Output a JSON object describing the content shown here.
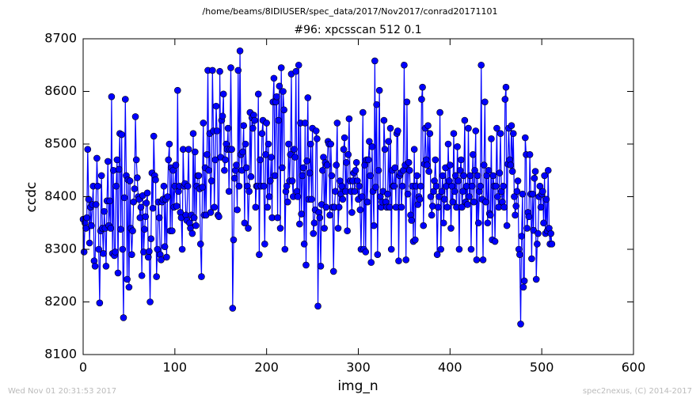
{
  "chart_data": {
    "type": "line",
    "suptitle": "/home/beams/8IDIUSER/spec_data/2017/Nov2017/conrad20171101",
    "title": "#96: xpcsscan 512 0.1",
    "xlabel": "img_n",
    "ylabel": "ccdc",
    "footer_left": "Wed Nov 01 20:31:53 2017",
    "footer_right": "spec2nexus, (C) 2014-2017",
    "color": "#0000ff",
    "marker": "o",
    "xlim": [
      0,
      600
    ],
    "xticks": [
      0,
      100,
      200,
      300,
      400,
      500,
      600
    ],
    "ylim": [
      8100,
      8700
    ],
    "yticks": [
      8100,
      8200,
      8300,
      8400,
      8500,
      8600,
      8700
    ],
    "x": [
      0,
      1,
      2,
      3,
      4,
      5,
      6,
      7,
      8,
      9,
      10,
      11,
      12,
      13,
      14,
      15,
      16,
      17,
      18,
      19,
      20,
      21,
      22,
      23,
      24,
      25,
      26,
      27,
      28,
      29,
      30,
      31,
      32,
      33,
      34,
      35,
      36,
      37,
      38,
      39,
      40,
      41,
      42,
      43,
      44,
      45,
      46,
      47,
      48,
      49,
      50,
      51,
      52,
      53,
      54,
      55,
      56,
      57,
      58,
      59,
      60,
      61,
      62,
      63,
      64,
      65,
      66,
      67,
      68,
      69,
      70,
      71,
      72,
      73,
      74,
      75,
      76,
      77,
      78,
      79,
      80,
      81,
      82,
      83,
      84,
      85,
      86,
      87,
      88,
      89,
      90,
      91,
      92,
      93,
      94,
      95,
      96,
      97,
      98,
      99,
      100,
      101,
      102,
      103,
      104,
      105,
      106,
      107,
      108,
      109,
      110,
      111,
      112,
      113,
      114,
      115,
      116,
      117,
      118,
      119,
      120,
      121,
      122,
      123,
      124,
      125,
      126,
      127,
      128,
      129,
      130,
      131,
      132,
      133,
      134,
      135,
      136,
      137,
      138,
      139,
      140,
      141,
      142,
      143,
      144,
      145,
      146,
      147,
      148,
      149,
      150,
      151,
      152,
      153,
      154,
      155,
      156,
      157,
      158,
      159,
      160,
      161,
      162,
      163,
      164,
      165,
      166,
      167,
      168,
      169,
      170,
      171,
      172,
      173,
      174,
      175,
      176,
      177,
      178,
      179,
      180,
      181,
      182,
      183,
      184,
      185,
      186,
      187,
      188,
      189,
      190,
      191,
      192,
      193,
      194,
      195,
      196,
      197,
      198,
      199,
      200,
      201,
      202,
      203,
      204,
      205,
      206,
      207,
      208,
      209,
      210,
      211,
      212,
      213,
      214,
      215,
      216,
      217,
      218,
      219,
      220,
      221,
      222,
      223,
      224,
      225,
      226,
      227,
      228,
      229,
      230,
      231,
      232,
      233,
      234,
      235,
      236,
      237,
      238,
      239,
      240,
      241,
      242,
      243,
      244,
      245,
      246,
      247,
      248,
      249,
      250,
      251,
      252,
      253,
      254,
      255,
      256,
      257,
      258,
      259,
      260,
      261,
      262,
      263,
      264,
      265,
      266,
      267,
      268,
      269,
      270,
      271,
      272,
      273,
      274,
      275,
      276,
      277,
      278,
      279,
      280,
      281,
      282,
      283,
      284,
      285,
      286,
      287,
      288,
      289,
      290,
      291,
      292,
      293,
      294,
      295,
      296,
      297,
      298,
      299,
      300,
      301,
      302,
      303,
      304,
      305,
      306,
      307,
      308,
      309,
      310,
      311,
      312,
      313,
      314,
      315,
      316,
      317,
      318,
      319,
      320,
      321,
      322,
      323,
      324,
      325,
      326,
      327,
      328,
      329,
      330,
      331,
      332,
      333,
      334,
      335,
      336,
      337,
      338,
      339,
      340,
      341,
      342,
      343,
      344,
      345,
      346,
      347,
      348,
      349,
      350,
      351,
      352,
      353,
      354,
      355,
      356,
      357,
      358,
      359,
      360,
      361,
      362,
      363,
      364,
      365,
      366,
      367,
      368,
      369,
      370,
      371,
      372,
      373,
      374,
      375,
      376,
      377,
      378,
      379,
      380,
      381,
      382,
      383,
      384,
      385,
      386,
      387,
      388,
      389,
      390,
      391,
      392,
      393,
      394,
      395,
      396,
      397,
      398,
      399,
      400,
      401,
      402,
      403,
      404,
      405,
      406,
      407,
      408,
      409,
      410,
      411,
      412,
      413,
      414,
      415,
      416,
      417,
      418,
      419,
      420,
      421,
      422,
      423,
      424,
      425,
      426,
      427,
      428,
      429,
      430,
      431,
      432,
      433,
      434,
      435,
      436,
      437,
      438,
      439,
      440,
      441,
      442,
      443,
      444,
      445,
      446,
      447,
      448,
      449,
      450,
      451,
      452,
      453,
      454,
      455,
      456,
      457,
      458,
      459,
      460,
      461,
      462,
      463,
      464,
      465,
      466,
      467,
      468,
      469,
      470,
      471,
      472,
      473,
      474,
      475,
      476,
      477,
      478,
      479,
      480,
      481,
      482,
      483,
      484,
      485,
      486,
      487,
      488,
      489,
      490,
      491,
      492,
      493,
      494,
      495,
      496,
      497,
      498,
      499,
      500,
      501,
      502,
      503,
      504,
      505,
      506,
      507,
      508,
      509,
      510,
      511
    ],
    "values": [
      8357,
      8295,
      8350,
      8340,
      8360,
      8490,
      8395,
      8312,
      8380,
      8345,
      8385,
      8420,
      8278,
      8268,
      8385,
      8473,
      8420,
      8300,
      8198,
      8335,
      8440,
      8340,
      8292,
      8372,
      8340,
      8268,
      8392,
      8467,
      8345,
      8392,
      8340,
      8590,
      8292,
      8450,
      8288,
      8295,
      8420,
      8470,
      8255,
      8452,
      8520,
      8338,
      8518,
      8300,
      8170,
      8398,
      8585,
      8440,
      8243,
      8432,
      8228,
      8430,
      8340,
      8290,
      8335,
      8390,
      8415,
      8552,
      8470,
      8436,
      8400,
      8395,
      8360,
      8380,
      8250,
      8402,
      8295,
      8338,
      8362,
      8388,
      8407,
      8285,
      8296,
      8200,
      8320,
      8445,
      8378,
      8515,
      8440,
      8432,
      8248,
      8300,
      8390,
      8360,
      8290,
      8280,
      8390,
      8395,
      8420,
      8305,
      8395,
      8285,
      8400,
      8470,
      8500,
      8335,
      8455,
      8335,
      8450,
      8380,
      8420,
      8460,
      8382,
      8602,
      8410,
      8420,
      8370,
      8360,
      8300,
      8490,
      8420,
      8425,
      8365,
      8355,
      8420,
      8490,
      8350,
      8340,
      8365,
      8330,
      8520,
      8360,
      8485,
      8345,
      8420,
      8440,
      8440,
      8415,
      8310,
      8248,
      8418,
      8540,
      8365,
      8455,
      8365,
      8480,
      8640,
      8450,
      8520,
      8370,
      8430,
      8640,
      8525,
      8380,
      8470,
      8572,
      8525,
      8365,
      8362,
      8638,
      8475,
      8545,
      8553,
      8595,
      8450,
      8470,
      8500,
      8490,
      8530,
      8410,
      8490,
      8645,
      8490,
      8188,
      8318,
      8435,
      8450,
      8460,
      8375,
      8640,
      8420,
      8677,
      8480,
      8450,
      8485,
      8535,
      8350,
      8500,
      8455,
      8420,
      8340,
      8410,
      8560,
      8438,
      8550,
      8530,
      8555,
      8545,
      8380,
      8420,
      8420,
      8595,
      8290,
      8470,
      8420,
      8520,
      8545,
      8420,
      8310,
      8480,
      8540,
      8380,
      8500,
      8400,
      8430,
      8475,
      8360,
      8580,
      8625,
      8440,
      8580,
      8590,
      8360,
      8545,
      8610,
      8340,
      8645,
      8455,
      8600,
      8565,
      8300,
      8410,
      8420,
      8390,
      8500,
      8430,
      8480,
      8633,
      8430,
      8400,
      8490,
      8475,
      8638,
      8410,
      8400,
      8650,
      8348,
      8540,
      8367,
      8440,
      8455,
      8310,
      8540,
      8270,
      8468,
      8588,
      8395,
      8445,
      8500,
      8395,
      8530,
      8330,
      8350,
      8375,
      8525,
      8510,
      8192,
      8370,
      8360,
      8268,
      8385,
      8450,
      8475,
      8340,
      8465,
      8380,
      8460,
      8505,
      8500,
      8365,
      8500,
      8440,
      8380,
      8258,
      8380,
      8410,
      8460,
      8540,
      8340,
      8380,
      8430,
      8405,
      8420,
      8395,
      8490,
      8512,
      8410,
      8465,
      8335,
      8480,
      8548,
      8430,
      8410,
      8370,
      8430,
      8445,
      8410,
      8450,
      8465,
      8430,
      8395,
      8420,
      8375,
      8300,
      8400,
      8560,
      8300,
      8460,
      8295,
      8470,
      8390,
      8470,
      8505,
      8440,
      8275,
      8495,
      8410,
      8345,
      8658,
      8418,
      8575,
      8290,
      8450,
      8602,
      8400,
      8380,
      8390,
      8410,
      8545,
      8490,
      8390,
      8380,
      8405,
      8505,
      8380,
      8530,
      8300,
      8450,
      8420,
      8420,
      8455,
      8380,
      8520,
      8525,
      8278,
      8440,
      8445,
      8380,
      8420,
      8450,
      8650,
      8460,
      8280,
      8580,
      8405,
      8465,
      8450,
      8365,
      8355,
      8420,
      8315,
      8490,
      8318,
      8420,
      8440,
      8385,
      8400,
      8395,
      8420,
      8585,
      8608,
      8345,
      8462,
      8530,
      8470,
      8460,
      8535,
      8448,
      8520,
      8400,
      8365,
      8382,
      8410,
      8430,
      8470,
      8420,
      8290,
      8380,
      8400,
      8560,
      8300,
      8410,
      8440,
      8350,
      8395,
      8455,
      8420,
      8380,
      8500,
      8430,
      8460,
      8340,
      8420,
      8390,
      8520,
      8410,
      8440,
      8380,
      8495,
      8430,
      8300,
      8450,
      8470,
      8380,
      8410,
      8440,
      8545,
      8390,
      8420,
      8385,
      8530,
      8400,
      8440,
      8300,
      8420,
      8480,
      8390,
      8450,
      8525,
      8280,
      8440,
      8350,
      8410,
      8420,
      8650,
      8395,
      8280,
      8460,
      8580,
      8390,
      8440,
      8350,
      8450,
      8368,
      8365,
      8510,
      8318,
      8440,
      8420,
      8315,
      8420,
      8530,
      8400,
      8380,
      8445,
      8520,
      8410,
      8390,
      8420,
      8380,
      8585,
      8608,
      8345,
      8462,
      8530,
      8470,
      8460,
      8535,
      8448,
      8520,
      8400,
      8365,
      8382,
      8410,
      8430,
      8300,
      8290,
      8158,
      8325,
      8405,
      8228,
      8240,
      8512,
      8480,
      8340,
      8370,
      8362,
      8480,
      8405,
      8282,
      8405,
      8336,
      8435,
      8448,
      8243,
      8310,
      8330,
      8400,
      8420,
      8380,
      8405,
      8410,
      8350,
      8440,
      8330,
      8395,
      8335,
      8450,
      8340,
      8310,
      8330,
      8310
    ]
  }
}
